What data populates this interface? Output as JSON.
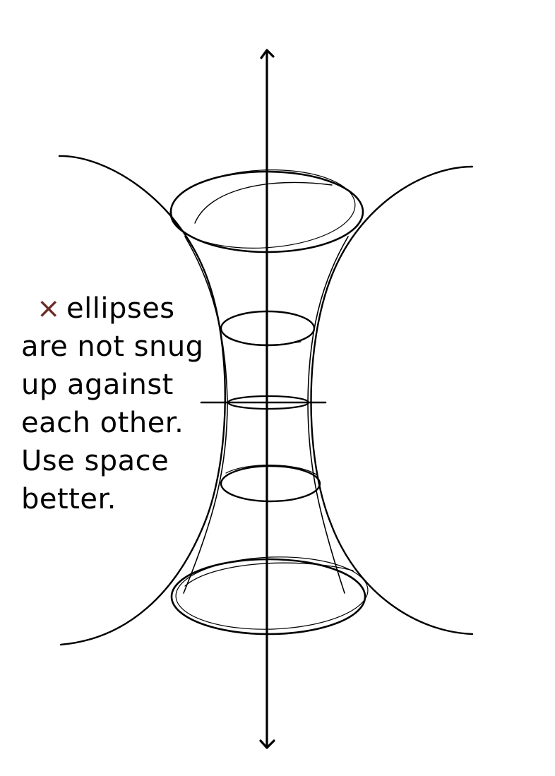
{
  "colors": {
    "background": "#ffffff",
    "ink": "#000000",
    "mark": "#6e2a26"
  },
  "note": {
    "mark": "×",
    "lines": [
      "ellipses",
      "are not snug",
      "up against",
      "each other.",
      "Use space",
      "better."
    ]
  },
  "diagram": {
    "subject": "hyperboloid of one sheet with cross-section ellipses along a vertical axis",
    "axis_arrows": [
      "arrow-up",
      "arrow-down"
    ],
    "ellipse_count": 5
  }
}
